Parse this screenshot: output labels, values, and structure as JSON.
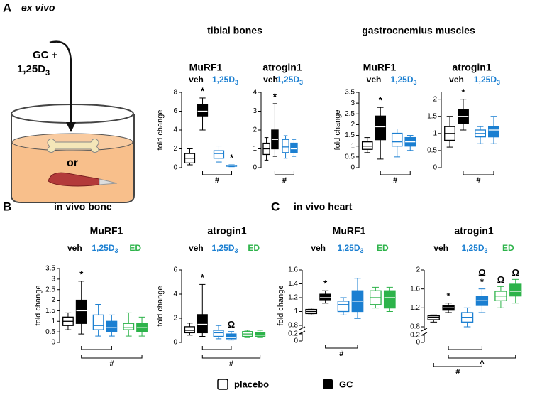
{
  "figure": {
    "panels": [
      {
        "label": "A",
        "title": "ex vivo"
      },
      {
        "label": "B",
        "title": "in vivo bone"
      },
      {
        "label": "C",
        "title": "in vivo heart"
      }
    ],
    "section_titles": [
      "tibial bones",
      "gastrocnemius muscles"
    ],
    "diagram": {
      "line1": "GC +",
      "line2": "1,25D",
      "line2_sub": "3",
      "center": "or"
    },
    "legend": [
      "placebo",
      "GC"
    ]
  },
  "chart_data": [
    {
      "type": "box",
      "title": "MuRF1",
      "ylabel": "fold change",
      "ylim": [
        0,
        8
      ],
      "yticks": [
        0,
        2,
        4,
        6,
        8
      ],
      "groups": [
        {
          "name": "veh",
          "color": "#000000",
          "boxes": [
            {
              "stats": [
                0.3,
                0.5,
                1.0,
                1.5,
                2.0
              ],
              "sig": []
            },
            {
              "stats": [
                4.0,
                5.5,
                6.0,
                6.7,
                7.4
              ],
              "sig": [
                "*"
              ]
            }
          ]
        },
        {
          "name": "1,25D",
          "sub": "3",
          "color": "#1b7fd1",
          "boxes": [
            {
              "stats": [
                0.6,
                1.0,
                1.5,
                1.8,
                2.3
              ],
              "sig": []
            },
            {
              "stats": [
                0.1,
                0.15,
                0.2,
                0.25,
                0.3
              ],
              "sig": [
                "*"
              ]
            }
          ]
        }
      ],
      "brackets": [
        {
          "span": [
            1,
            3
          ],
          "label": "#"
        }
      ]
    },
    {
      "type": "box",
      "title": "atrogin1",
      "ylim": [
        0,
        4
      ],
      "yticks": [
        0,
        1,
        2,
        3,
        4
      ],
      "groups": [
        {
          "name": "veh",
          "color": "#000000",
          "boxes": [
            {
              "stats": [
                0.4,
                0.7,
                1.0,
                1.3,
                1.6
              ],
              "sig": []
            },
            {
              "stats": [
                0.6,
                1.0,
                1.5,
                2.0,
                3.4
              ],
              "sig": [
                "*"
              ]
            }
          ]
        },
        {
          "name": "1,25D",
          "sub": "3",
          "color": "#1b7fd1",
          "boxes": [
            {
              "stats": [
                0.5,
                0.8,
                1.1,
                1.5,
                1.7
              ],
              "sig": []
            },
            {
              "stats": [
                0.6,
                0.8,
                1.0,
                1.3,
                1.5
              ],
              "sig": []
            }
          ]
        }
      ],
      "brackets": [
        {
          "span": [
            1,
            3
          ],
          "label": "#"
        }
      ]
    },
    {
      "type": "box",
      "title": "MuRF1",
      "ylabel": "fold change",
      "ylim": [
        0,
        3.5
      ],
      "yticks": [
        0,
        0.5,
        1,
        1.5,
        2,
        2.5,
        3,
        3.5
      ],
      "groups": [
        {
          "name": "veh",
          "color": "#000000",
          "boxes": [
            {
              "stats": [
                0.7,
                0.85,
                1.0,
                1.2,
                1.4
              ],
              "sig": []
            },
            {
              "stats": [
                0.4,
                1.3,
                1.9,
                2.4,
                2.8
              ],
              "sig": [
                "*"
              ]
            }
          ]
        },
        {
          "name": "1,25D",
          "sub": "3",
          "color": "#1b7fd1",
          "boxes": [
            {
              "stats": [
                0.5,
                1.0,
                1.2,
                1.6,
                1.8
              ],
              "sig": []
            },
            {
              "stats": [
                0.8,
                1.0,
                1.2,
                1.4,
                1.5
              ],
              "sig": []
            }
          ]
        }
      ],
      "brackets": [
        {
          "span": [
            1,
            3
          ],
          "label": "#"
        }
      ]
    },
    {
      "type": "box",
      "title": "atrogin1",
      "ylim": [
        0,
        2.2
      ],
      "yticks": [
        0,
        0.5,
        1,
        1.5,
        2
      ],
      "groups": [
        {
          "name": "veh",
          "color": "#000000",
          "boxes": [
            {
              "stats": [
                0.6,
                0.8,
                1.0,
                1.2,
                1.5
              ],
              "sig": []
            },
            {
              "stats": [
                1.1,
                1.3,
                1.5,
                1.7,
                2.0
              ],
              "sig": [
                "*"
              ]
            }
          ]
        },
        {
          "name": "1,25D",
          "sub": "3",
          "color": "#1b7fd1",
          "boxes": [
            {
              "stats": [
                0.7,
                0.9,
                1.0,
                1.1,
                1.2
              ],
              "sig": []
            },
            {
              "stats": [
                0.7,
                0.9,
                1.1,
                1.2,
                1.5
              ],
              "sig": []
            }
          ]
        }
      ],
      "brackets": [
        {
          "span": [
            1,
            3
          ],
          "label": "#"
        }
      ]
    },
    {
      "type": "box",
      "title": "MuRF1",
      "ylabel": "fold change",
      "ylim": [
        0,
        3.5
      ],
      "yticks": [
        0,
        0.5,
        1,
        1.5,
        2,
        2.5,
        3,
        3.5
      ],
      "groups": [
        {
          "name": "veh",
          "color": "#000000",
          "boxes": [
            {
              "stats": [
                0.6,
                0.8,
                1.0,
                1.2,
                1.4
              ],
              "sig": []
            },
            {
              "stats": [
                0.4,
                0.9,
                1.5,
                2.0,
                2.9
              ],
              "sig": [
                "*"
              ]
            }
          ]
        },
        {
          "name": "1,25D",
          "sub": "3",
          "color": "#1b7fd1",
          "boxes": [
            {
              "stats": [
                0.3,
                0.6,
                0.8,
                1.3,
                1.8
              ],
              "sig": []
            },
            {
              "stats": [
                0.3,
                0.5,
                0.7,
                1.0,
                1.3
              ],
              "sig": []
            }
          ]
        },
        {
          "name": "ED",
          "color": "#2db34a",
          "boxes": [
            {
              "stats": [
                0.3,
                0.6,
                0.7,
                0.9,
                1.4
              ],
              "sig": []
            },
            {
              "stats": [
                0.3,
                0.5,
                0.7,
                0.9,
                1.2
              ],
              "sig": []
            }
          ]
        }
      ],
      "brackets": [
        {
          "span": [
            1,
            3
          ]
        },
        {
          "span": [
            1,
            5
          ],
          "label": "#"
        }
      ]
    },
    {
      "type": "box",
      "title": "atrogin1",
      "ylabel": "fold change",
      "ylim": [
        0,
        6
      ],
      "yticks": [
        0,
        2,
        4,
        6
      ],
      "groups": [
        {
          "name": "veh",
          "color": "#000000",
          "boxes": [
            {
              "stats": [
                0.6,
                0.8,
                1.0,
                1.3,
                1.6
              ],
              "sig": []
            },
            {
              "stats": [
                0.5,
                0.8,
                1.5,
                2.3,
                4.8
              ],
              "sig": [
                "*"
              ]
            }
          ]
        },
        {
          "name": "1,25D",
          "sub": "3",
          "color": "#1b7fd1",
          "boxes": [
            {
              "stats": [
                0.3,
                0.5,
                0.8,
                1.0,
                1.4
              ],
              "sig": []
            },
            {
              "stats": [
                0.2,
                0.3,
                0.4,
                0.7,
                0.9
              ],
              "sig": [
                "Ω"
              ]
            }
          ]
        },
        {
          "name": "ED",
          "color": "#2db34a",
          "boxes": [
            {
              "stats": [
                0.4,
                0.5,
                0.7,
                0.9,
                1.0
              ],
              "sig": []
            },
            {
              "stats": [
                0.4,
                0.5,
                0.6,
                0.8,
                1.0
              ],
              "sig": []
            }
          ]
        }
      ],
      "brackets": [
        {
          "span": [
            1,
            3
          ]
        },
        {
          "span": [
            1,
            5
          ],
          "label": "#"
        }
      ]
    },
    {
      "type": "box",
      "title": "MuRF1",
      "ylabel": "fold change",
      "ylim": [
        0,
        1.6
      ],
      "ybreak": [
        0.2,
        0.8
      ],
      "yticks": [
        0,
        0.2,
        0.8,
        1.0,
        1.2,
        1.4,
        1.6
      ],
      "groups": [
        {
          "name": "veh",
          "color": "#000000",
          "boxes": [
            {
              "stats": [
                0.95,
                0.97,
                1.0,
                1.03,
                1.05
              ],
              "sig": []
            },
            {
              "stats": [
                1.12,
                1.17,
                1.2,
                1.25,
                1.3
              ],
              "sig": [
                "*"
              ]
            }
          ]
        },
        {
          "name": "1,25D",
          "sub": "3",
          "color": "#1b7fd1",
          "boxes": [
            {
              "stats": [
                0.95,
                1.0,
                1.1,
                1.15,
                1.2
              ],
              "sig": []
            },
            {
              "stats": [
                0.9,
                1.0,
                1.15,
                1.3,
                1.48
              ],
              "sig": []
            }
          ]
        },
        {
          "name": "ED",
          "color": "#2db34a",
          "boxes": [
            {
              "stats": [
                1.05,
                1.1,
                1.2,
                1.3,
                1.35
              ],
              "sig": []
            },
            {
              "stats": [
                1.0,
                1.05,
                1.2,
                1.3,
                1.35
              ],
              "sig": []
            }
          ]
        }
      ],
      "brackets": [
        {
          "span": [
            1,
            3
          ],
          "label": "#"
        }
      ]
    },
    {
      "type": "box",
      "title": "atrogin1",
      "ylim": [
        0,
        2.0
      ],
      "ybreak": [
        0.2,
        0.8
      ],
      "yticks": [
        0,
        0.2,
        0.8,
        1.2,
        1.6,
        2.0
      ],
      "groups": [
        {
          "name": "veh",
          "color": "#000000",
          "boxes": [
            {
              "stats": [
                0.9,
                0.95,
                1.0,
                1.03,
                1.05
              ],
              "sig": []
            },
            {
              "stats": [
                1.1,
                1.15,
                1.2,
                1.25,
                1.3
              ],
              "sig": [
                "*"
              ]
            }
          ]
        },
        {
          "name": "1,25D",
          "sub": "3",
          "color": "#1b7fd1",
          "boxes": [
            {
              "stats": [
                0.8,
                0.9,
                1.0,
                1.1,
                1.2
              ],
              "sig": []
            },
            {
              "stats": [
                1.1,
                1.25,
                1.35,
                1.45,
                1.6
              ],
              "sig": [
                "*",
                "Ω"
              ]
            }
          ]
        },
        {
          "name": "ED",
          "color": "#2db34a",
          "boxes": [
            {
              "stats": [
                1.2,
                1.35,
                1.45,
                1.55,
                1.65
              ],
              "sig": [
                "Ω"
              ]
            },
            {
              "stats": [
                1.3,
                1.45,
                1.55,
                1.7,
                1.8
              ],
              "sig": [
                "Ω"
              ]
            }
          ]
        }
      ],
      "brackets": [
        {
          "span": [
            1,
            3
          ]
        },
        {
          "span": [
            1,
            5
          ],
          "label": "^"
        },
        {
          "span": [
            0,
            3
          ],
          "label": "#"
        }
      ]
    }
  ]
}
